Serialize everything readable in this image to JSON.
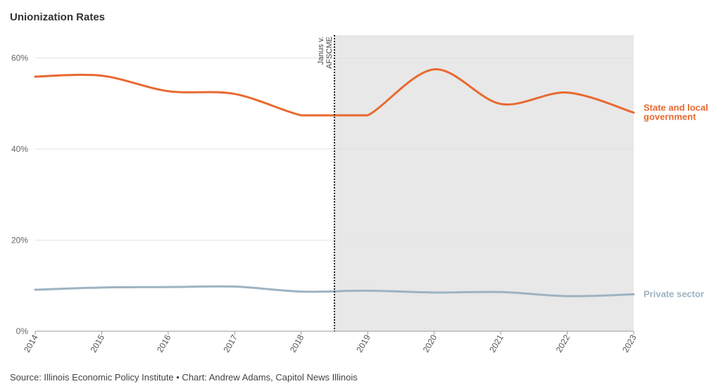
{
  "chart_data": {
    "type": "line",
    "title": "Unionization Rates",
    "x": [
      2014,
      2015,
      2016,
      2017,
      2018,
      2019,
      2020,
      2021,
      2022,
      2023
    ],
    "series": [
      {
        "name": "State and local government",
        "label_lines": [
          "State and local",
          "government"
        ],
        "color": "#e8692f",
        "points": [
          [
            2014,
            55.9
          ],
          [
            2015,
            56.1
          ],
          [
            2016,
            52.7
          ],
          [
            2017,
            52.1
          ],
          [
            2018,
            47.4
          ],
          [
            2018.5,
            47.4
          ],
          [
            2019,
            47.4
          ],
          [
            2020,
            57.5
          ],
          [
            2021,
            49.9
          ],
          [
            2022,
            52.4
          ],
          [
            2023,
            48.0
          ]
        ]
      },
      {
        "name": "Private sector",
        "label_lines": [
          "Private sector"
        ],
        "color": "#9db3c2",
        "points": [
          [
            2014,
            9.1
          ],
          [
            2015,
            9.6
          ],
          [
            2016,
            9.7
          ],
          [
            2017,
            9.8
          ],
          [
            2018,
            8.7
          ],
          [
            2019,
            8.9
          ],
          [
            2020,
            8.5
          ],
          [
            2021,
            8.6
          ],
          [
            2022,
            7.7
          ],
          [
            2023,
            8.1
          ]
        ]
      }
    ],
    "yticks": [
      0,
      20,
      40,
      60
    ],
    "ytick_labels": [
      "0%",
      "20%",
      "40%",
      "60%"
    ],
    "ylim": [
      0,
      65
    ],
    "xlim": [
      2014,
      2023
    ],
    "shaded_region": {
      "from": 2018.5,
      "to": 2023,
      "color": "#e8e8e8"
    },
    "annotation": {
      "x": 2018.5,
      "lines": [
        "Janus v.",
        "AFSCME"
      ]
    },
    "grid": true
  },
  "source": "Source: Illinois Economic Policy Institute • Chart: Andrew Adams, Capitol News Illinois"
}
